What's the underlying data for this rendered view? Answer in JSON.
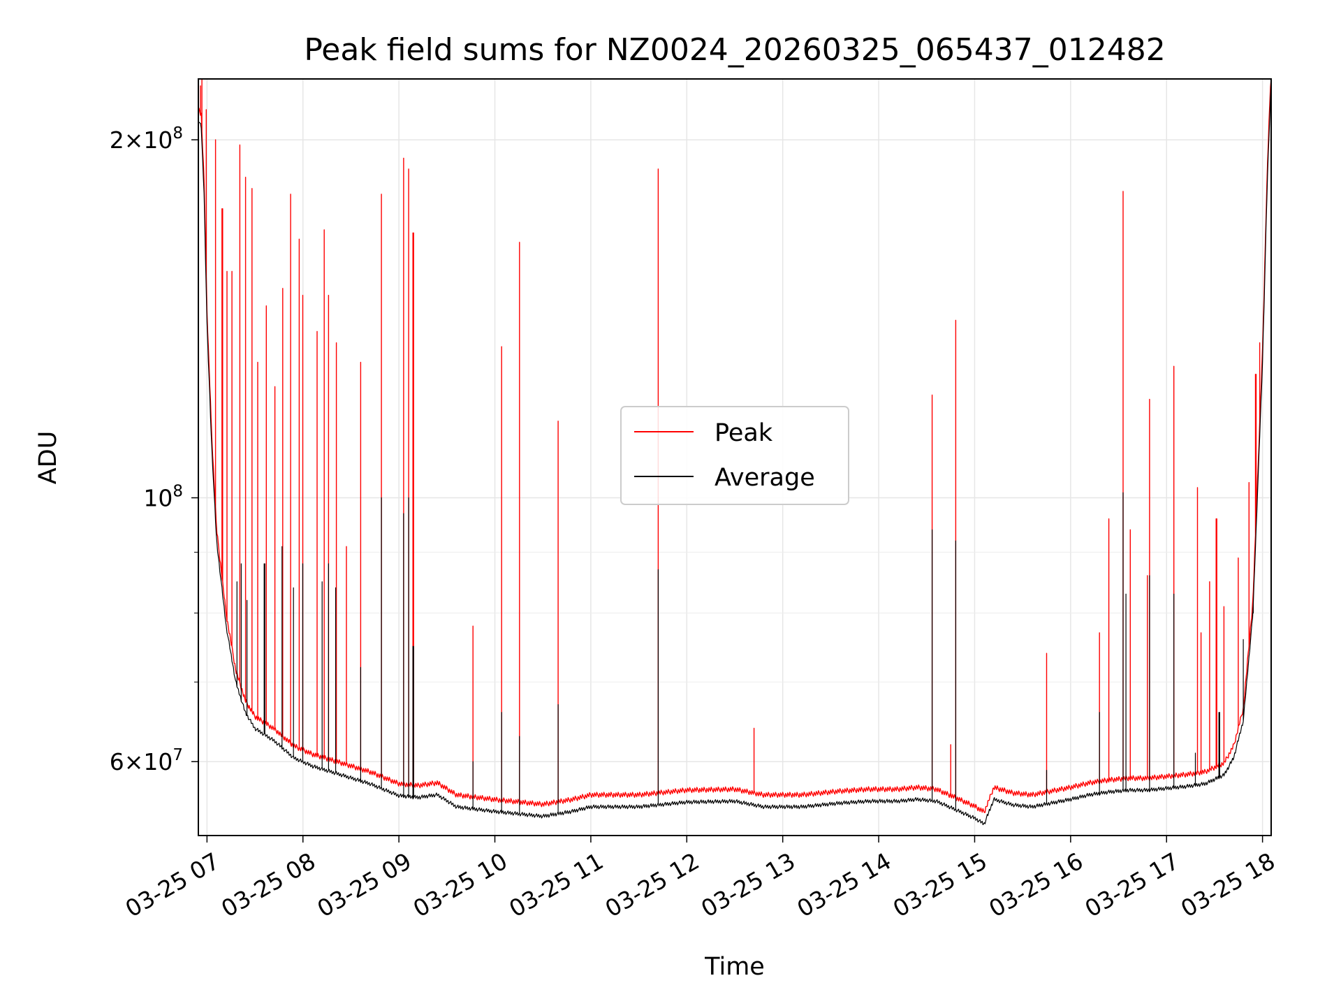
{
  "chart_data": {
    "type": "line",
    "title": "Peak field sums for NZ0024_20260325_065437_012482",
    "xlabel": "Time",
    "ylabel": "ADU",
    "yscale": "log",
    "xlim": [
      6.91,
      18.09
    ],
    "ylim": [
      52000000,
      225000000
    ],
    "grid": true,
    "legend": {
      "location": "center",
      "entries": [
        "Peak",
        "Average"
      ]
    },
    "x_ticks": [
      {
        "value": 7,
        "label": "03-25 07"
      },
      {
        "value": 8,
        "label": "03-25 08"
      },
      {
        "value": 9,
        "label": "03-25 09"
      },
      {
        "value": 10,
        "label": "03-25 10"
      },
      {
        "value": 11,
        "label": "03-25 11"
      },
      {
        "value": 12,
        "label": "03-25 12"
      },
      {
        "value": 13,
        "label": "03-25 13"
      },
      {
        "value": 14,
        "label": "03-25 14"
      },
      {
        "value": 15,
        "label": "03-25 15"
      },
      {
        "value": 16,
        "label": "03-25 16"
      },
      {
        "value": 17,
        "label": "03-25 17"
      },
      {
        "value": 18,
        "label": "03-25 18"
      }
    ],
    "y_ticks": [
      {
        "value": 60000000,
        "mantissa": "6",
        "exponent": "7"
      },
      {
        "value": 100000000,
        "mantissa": "",
        "exponent": "8"
      },
      {
        "value": 200000000,
        "mantissa": "2",
        "exponent": "8"
      }
    ],
    "y_minor_ticks": [
      70000000,
      80000000,
      90000000
    ],
    "baseline_average": [
      [
        6.91,
        208000000
      ],
      [
        6.94,
        205000000
      ],
      [
        6.97,
        180000000
      ],
      [
        7.0,
        140000000
      ],
      [
        7.05,
        110000000
      ],
      [
        7.1,
        92000000
      ],
      [
        7.2,
        78000000
      ],
      [
        7.3,
        70000000
      ],
      [
        7.4,
        66000000
      ],
      [
        7.5,
        64000000
      ],
      [
        7.7,
        62500000
      ],
      [
        7.9,
        60500000
      ],
      [
        8.1,
        59500000
      ],
      [
        8.4,
        58500000
      ],
      [
        8.7,
        57500000
      ],
      [
        9.0,
        56200000
      ],
      [
        9.2,
        56000000
      ],
      [
        9.4,
        56300000
      ],
      [
        9.6,
        55000000
      ],
      [
        10.0,
        54500000
      ],
      [
        10.5,
        54000000
      ],
      [
        10.8,
        54500000
      ],
      [
        11.0,
        55000000
      ],
      [
        11.5,
        55000000
      ],
      [
        12.0,
        55500000
      ],
      [
        12.5,
        55600000
      ],
      [
        12.8,
        55000000
      ],
      [
        13.2,
        55000000
      ],
      [
        13.6,
        55400000
      ],
      [
        13.9,
        55600000
      ],
      [
        14.2,
        55600000
      ],
      [
        14.4,
        55800000
      ],
      [
        14.6,
        55600000
      ],
      [
        14.8,
        54700000
      ],
      [
        15.0,
        53800000
      ],
      [
        15.1,
        53200000
      ],
      [
        15.2,
        55800000
      ],
      [
        15.4,
        55200000
      ],
      [
        15.6,
        55000000
      ],
      [
        15.8,
        55400000
      ],
      [
        16.0,
        55800000
      ],
      [
        16.2,
        56300000
      ],
      [
        16.4,
        56600000
      ],
      [
        16.6,
        56800000
      ],
      [
        16.8,
        56800000
      ],
      [
        17.0,
        57000000
      ],
      [
        17.2,
        57200000
      ],
      [
        17.4,
        57500000
      ],
      [
        17.6,
        58500000
      ],
      [
        17.7,
        60500000
      ],
      [
        17.8,
        65000000
      ],
      [
        17.9,
        80000000
      ],
      [
        18.0,
        130000000
      ],
      [
        18.05,
        185000000
      ],
      [
        18.09,
        225000000
      ]
    ],
    "peak_offset_fraction": 0.018,
    "series": [
      {
        "name": "Peak",
        "color": "#ff0000",
        "spikes": [
          [
            6.93,
            222000000
          ],
          [
            6.95,
            225000000
          ],
          [
            6.99,
            212000000
          ],
          [
            7.09,
            200000000
          ],
          [
            7.16,
            175000000
          ],
          [
            7.21,
            155000000
          ],
          [
            7.26,
            155000000
          ],
          [
            7.34,
            198000000
          ],
          [
            7.4,
            186000000
          ],
          [
            7.47,
            182000000
          ],
          [
            7.53,
            130000000
          ],
          [
            7.62,
            145000000
          ],
          [
            7.71,
            124000000
          ],
          [
            7.79,
            150000000
          ],
          [
            7.87,
            180000000
          ],
          [
            7.96,
            165000000
          ],
          [
            8.0,
            148000000
          ],
          [
            8.15,
            138000000
          ],
          [
            8.22,
            168000000
          ],
          [
            8.27,
            148000000
          ],
          [
            8.35,
            135000000
          ],
          [
            8.45,
            91000000
          ],
          [
            8.6,
            130000000
          ],
          [
            8.82,
            180000000
          ],
          [
            9.05,
            193000000
          ],
          [
            9.1,
            189000000
          ],
          [
            9.15,
            167000000
          ],
          [
            9.77,
            78000000
          ],
          [
            10.07,
            134000000
          ],
          [
            10.26,
            164000000
          ],
          [
            10.66,
            116000000
          ],
          [
            11.7,
            189000000
          ],
          [
            12.7,
            64000000
          ],
          [
            14.56,
            122000000
          ],
          [
            14.75,
            62000000
          ],
          [
            14.8,
            141000000
          ],
          [
            15.75,
            74000000
          ],
          [
            16.3,
            77000000
          ],
          [
            16.4,
            96000000
          ],
          [
            16.55,
            181000000
          ],
          [
            16.62,
            94000000
          ],
          [
            16.8,
            86000000
          ],
          [
            16.82,
            121000000
          ],
          [
            17.08,
            129000000
          ],
          [
            17.32,
            102000000
          ],
          [
            17.36,
            77000000
          ],
          [
            17.45,
            85000000
          ],
          [
            17.52,
            96000000
          ],
          [
            17.6,
            81000000
          ],
          [
            17.75,
            89000000
          ],
          [
            17.86,
            103000000
          ],
          [
            17.93,
            127000000
          ],
          [
            17.97,
            135000000
          ]
        ]
      },
      {
        "name": "Average",
        "color": "#000000",
        "spikes": [
          [
            7.31,
            85000000
          ],
          [
            7.36,
            88000000
          ],
          [
            7.42,
            82000000
          ],
          [
            7.6,
            88000000
          ],
          [
            7.78,
            91000000
          ],
          [
            7.9,
            84000000
          ],
          [
            8.0,
            88000000
          ],
          [
            8.2,
            85000000
          ],
          [
            8.27,
            88000000
          ],
          [
            8.34,
            84000000
          ],
          [
            8.6,
            72000000
          ],
          [
            8.82,
            100000000
          ],
          [
            9.05,
            97000000
          ],
          [
            9.1,
            100000000
          ],
          [
            9.15,
            75000000
          ],
          [
            9.77,
            60000000
          ],
          [
            10.07,
            66000000
          ],
          [
            10.26,
            63000000
          ],
          [
            10.66,
            67000000
          ],
          [
            11.7,
            87000000
          ],
          [
            14.56,
            94000000
          ],
          [
            14.8,
            92000000
          ],
          [
            15.75,
            59000000
          ],
          [
            16.3,
            66000000
          ],
          [
            16.55,
            101000000
          ],
          [
            16.58,
            83000000
          ],
          [
            16.82,
            86000000
          ],
          [
            17.08,
            83000000
          ],
          [
            17.3,
            61000000
          ],
          [
            17.55,
            66000000
          ],
          [
            17.8,
            76000000
          ],
          [
            17.9,
            80000000
          ]
        ]
      }
    ]
  }
}
